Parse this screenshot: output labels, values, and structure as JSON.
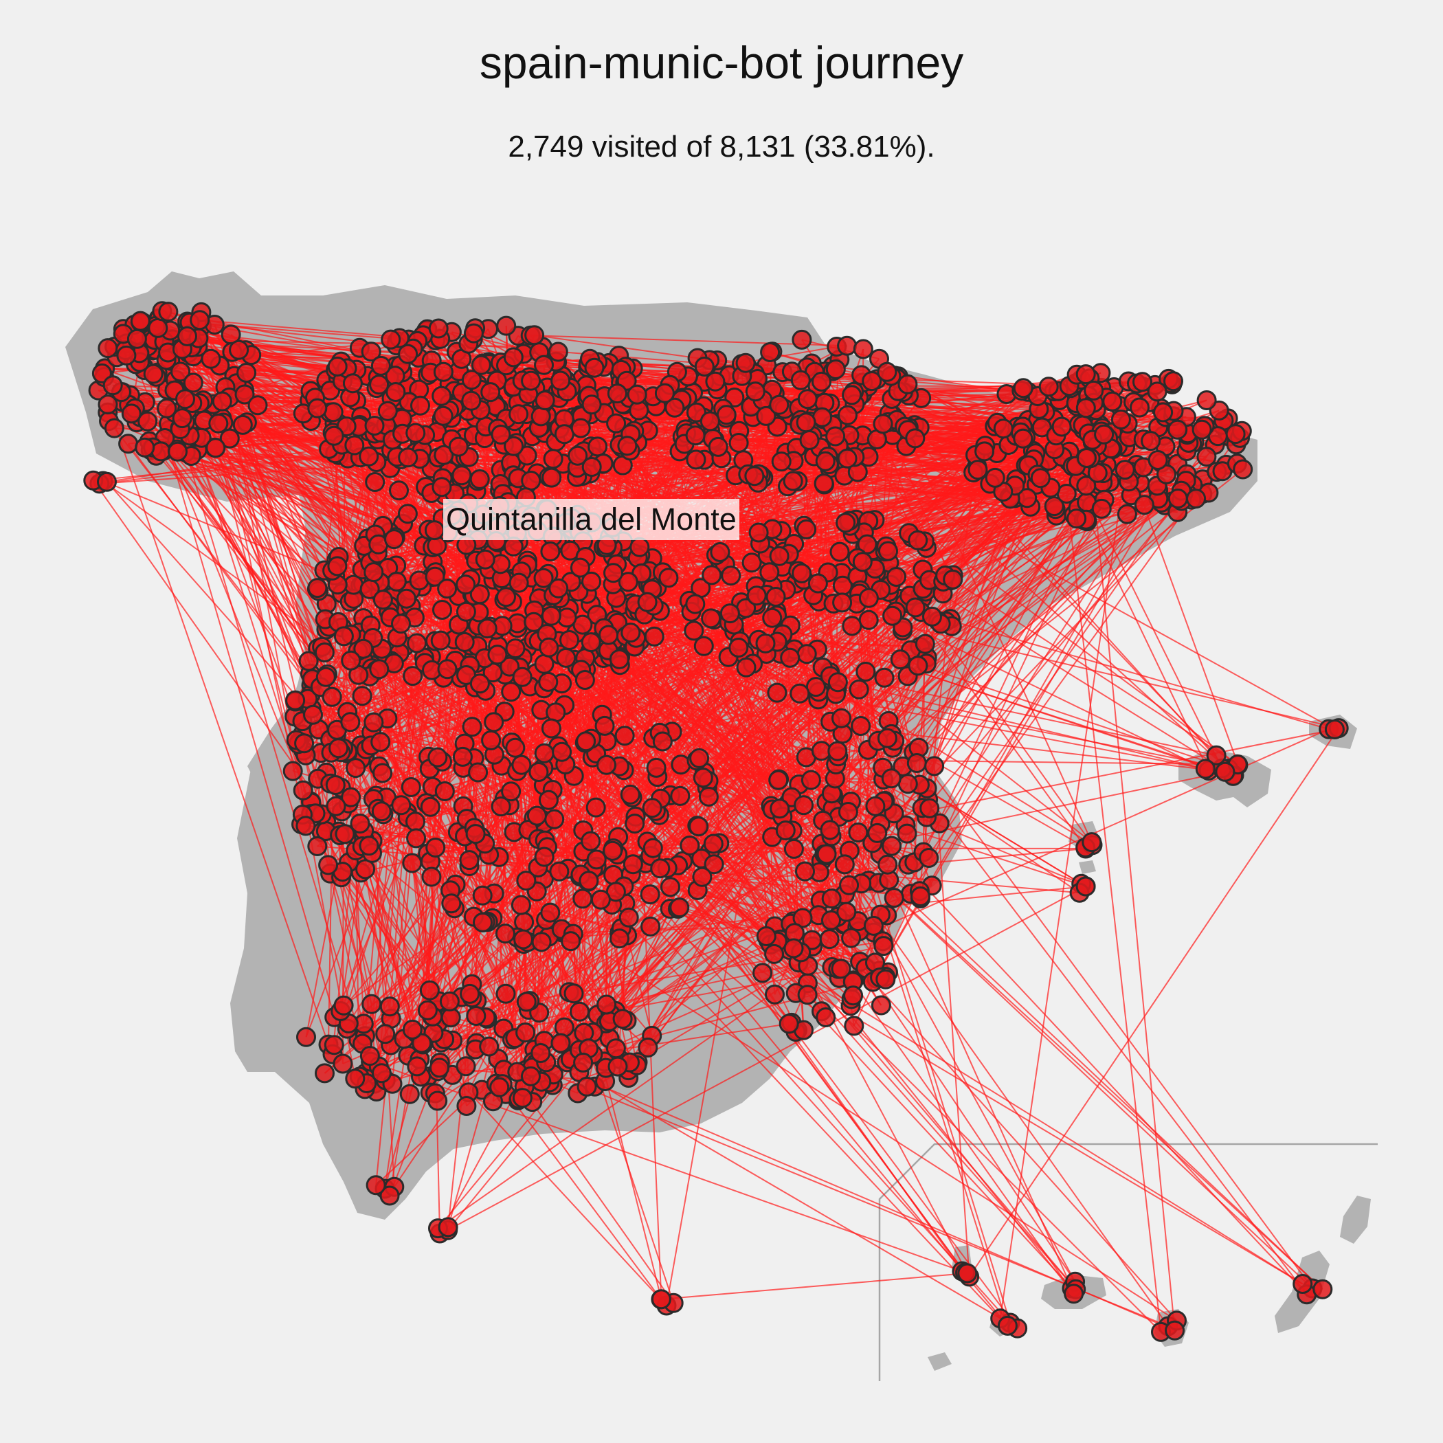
{
  "title": "spain-munic-bot journey",
  "subtitle": "2,749 visited of 8,131 (33.81%).",
  "stats": {
    "visited": 2749,
    "total": 8131,
    "percent": 33.81
  },
  "highlight_label": "Quintanilla del Monte",
  "colors": {
    "background": "#f0f0f0",
    "land": "#b3b3b3",
    "route_line": "#ff1a1a",
    "point_fill": "#e31a1c",
    "point_stroke": "#2b2b2b",
    "inset_frame": "#a6a6a6"
  },
  "legend": "none"
}
